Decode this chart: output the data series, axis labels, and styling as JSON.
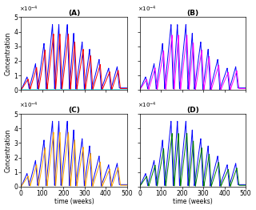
{
  "title_A": "(A)",
  "title_B": "(B)",
  "title_C": "(C)",
  "title_D": "(D)",
  "xlabel": "time (weeks)",
  "ylabel": "Concentration",
  "xlim": [
    0,
    500
  ],
  "ylim": [
    0,
    0.0005
  ],
  "colors_A": [
    "blue",
    "red",
    "cyan"
  ],
  "colors_B": [
    "blue",
    "magenta"
  ],
  "colors_C": [
    "blue",
    "orange"
  ],
  "colors_D": [
    "blue",
    "green"
  ],
  "bg_color": "#f0f0f0",
  "panel_bg": "#f8f8f8",
  "lw": 0.7,
  "blue_peaks_t": [
    28,
    68,
    108,
    148,
    178,
    218,
    248,
    288,
    323,
    368,
    413,
    453
  ],
  "blue_peaks_v": [
    0.9,
    1.8,
    3.2,
    4.5,
    4.5,
    4.5,
    3.9,
    3.3,
    2.8,
    2.1,
    1.5,
    1.6
  ],
  "blue_troughs_t": [
    0,
    38,
    78,
    118,
    158,
    188,
    228,
    258,
    298,
    333,
    378,
    423,
    463,
    500
  ],
  "blue_troughs_v": [
    0,
    0.08,
    0.08,
    0.08,
    0.08,
    0.08,
    0.06,
    0.06,
    0.05,
    0.04,
    0.04,
    0.04,
    0.14,
    0.14
  ],
  "sec_peaks_t": [
    33,
    73,
    113,
    153,
    183,
    223,
    253,
    293,
    328,
    373,
    418,
    458
  ],
  "sec_peaks_v": [
    0.75,
    1.55,
    2.75,
    3.85,
    3.85,
    3.85,
    3.3,
    2.8,
    2.35,
    1.75,
    1.25,
    1.35
  ],
  "sec_troughs_t": [
    0,
    43,
    83,
    123,
    163,
    193,
    233,
    263,
    303,
    338,
    383,
    428,
    468,
    500
  ],
  "sec_troughs_v": [
    0,
    0.05,
    0.05,
    0.05,
    0.05,
    0.05,
    0.04,
    0.04,
    0.03,
    0.03,
    0.03,
    0.03,
    0.1,
    0.1
  ]
}
